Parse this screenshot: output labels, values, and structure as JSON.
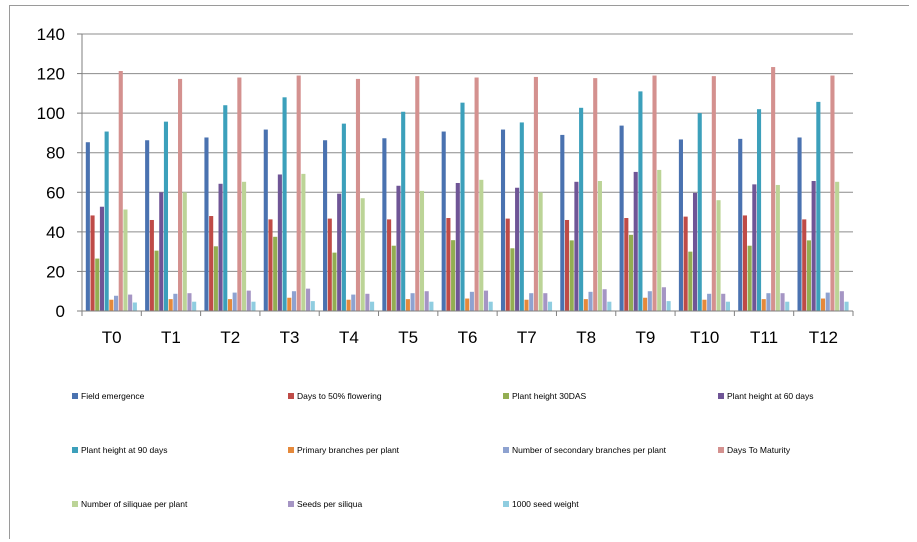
{
  "chart_data": {
    "type": "bar",
    "categories": [
      "T0",
      "T1",
      "T2",
      "T3",
      "T4",
      "T5",
      "T6",
      "T7",
      "T8",
      "T9",
      "T10",
      "T11",
      "T12"
    ],
    "ylim": [
      0,
      140
    ],
    "yticks": [
      0,
      20,
      40,
      60,
      80,
      100,
      120,
      140
    ],
    "grid": true,
    "legend_position": "bottom",
    "series": [
      {
        "name": "Field emergence",
        "color": "#4a72b0",
        "values": [
          85.3,
          86.3,
          87.7,
          91.7,
          86.3,
          87.3,
          90.7,
          91.7,
          89.0,
          93.7,
          86.7,
          87.0,
          87.7
        ]
      },
      {
        "name": "Days to 50% flowering",
        "color": "#bf4b47",
        "values": [
          48.3,
          46.0,
          48.0,
          46.3,
          46.7,
          46.3,
          47.0,
          46.7,
          46.0,
          47.0,
          47.7,
          48.3,
          46.3
        ]
      },
      {
        "name": "Plant height 30DAS",
        "color": "#93ae52",
        "values": [
          26.5,
          30.5,
          32.7,
          37.5,
          29.5,
          33.0,
          35.8,
          31.7,
          35.7,
          38.5,
          30.0,
          33.0,
          35.7
        ]
      },
      {
        "name": "Plant height at 60 days",
        "color": "#6f5596",
        "values": [
          52.7,
          60.0,
          64.3,
          69.0,
          59.3,
          63.3,
          64.7,
          62.3,
          65.3,
          70.3,
          59.7,
          64.0,
          65.7
        ]
      },
      {
        "name": "Plant height at 90 days",
        "color": "#3ca0bb",
        "values": [
          90.7,
          95.7,
          104.0,
          108.0,
          94.7,
          100.7,
          105.3,
          95.3,
          102.7,
          111.0,
          100.0,
          102.0,
          105.7
        ]
      },
      {
        "name": "Primary branches per plant",
        "color": "#e5893b",
        "values": [
          5.7,
          6.0,
          6.0,
          6.7,
          5.7,
          6.0,
          6.3,
          5.7,
          6.0,
          6.7,
          5.7,
          6.0,
          6.3
        ]
      },
      {
        "name": "Number of secondary branches per plant",
        "color": "#8ea2d0",
        "values": [
          7.7,
          8.7,
          9.3,
          10.0,
          8.3,
          9.0,
          9.7,
          9.0,
          9.7,
          10.0,
          8.7,
          9.0,
          9.3
        ]
      },
      {
        "name": "Days To Maturity",
        "color": "#d4918f",
        "values": [
          121.3,
          117.3,
          118.0,
          119.0,
          117.3,
          118.7,
          118.0,
          118.3,
          117.7,
          119.0,
          118.7,
          123.3,
          119.0
        ]
      },
      {
        "name": "Number of siliquae per plant",
        "color": "#bcd497",
        "values": [
          51.3,
          60.0,
          65.3,
          69.3,
          57.0,
          60.7,
          66.3,
          60.0,
          65.7,
          71.3,
          56.0,
          63.7,
          65.3
        ]
      },
      {
        "name": "Seeds per siliqua",
        "color": "#a595c4",
        "values": [
          8.3,
          9.0,
          10.3,
          11.3,
          8.7,
          10.0,
          10.3,
          9.0,
          11.0,
          12.0,
          8.7,
          9.0,
          10.0
        ]
      },
      {
        "name": "1000 seed weight",
        "color": "#8fcde0",
        "values": [
          4.3,
          4.7,
          4.7,
          5.0,
          4.7,
          4.7,
          4.7,
          4.7,
          4.7,
          5.0,
          4.7,
          4.7,
          4.7
        ]
      }
    ]
  }
}
